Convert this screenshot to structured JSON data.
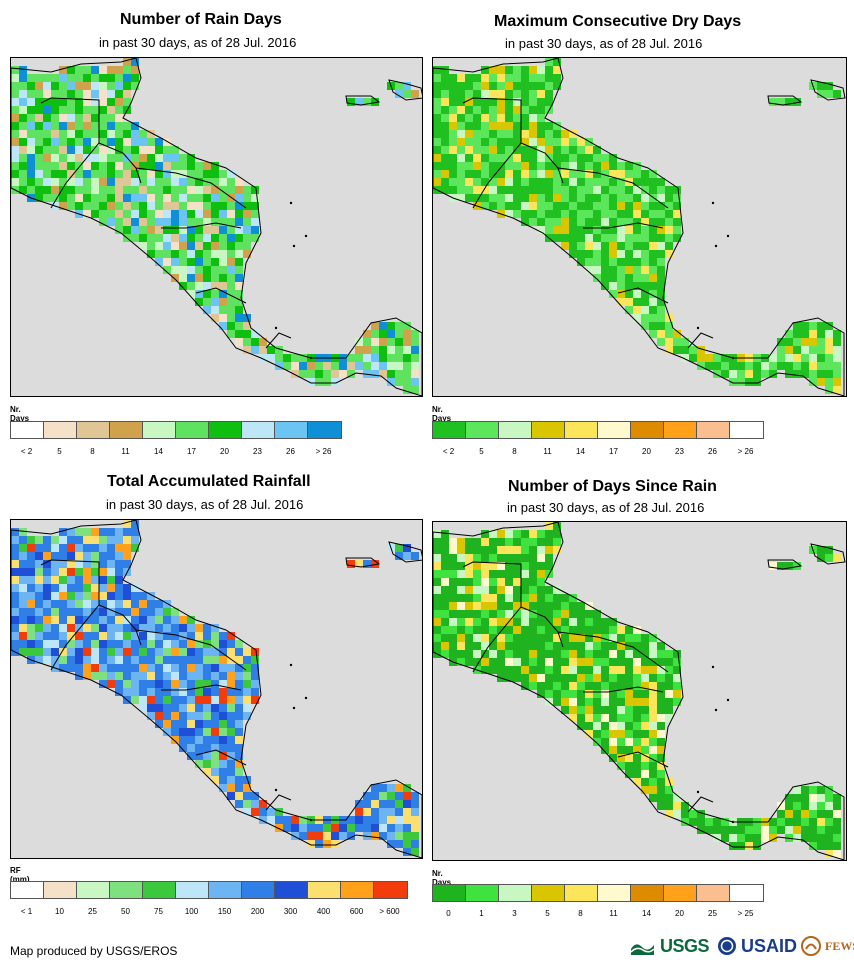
{
  "panels": [
    {
      "id": "rain-days",
      "title": "Number of Rain Days",
      "subtitle": "in past 30 days, as of 28 Jul. 2016",
      "units": "Nr. Days",
      "legend_colors": [
        "#ffffff",
        "#f5e1c8",
        "#e0c595",
        "#cfa24b",
        "#c8f7c4",
        "#5fe25f",
        "#0fbf0f",
        "#bde7f7",
        "#6cc4f2",
        "#0e8fd6"
      ],
      "tick_labels": [
        "< 2",
        "5",
        "8",
        "11",
        "14",
        "17",
        "20",
        "23",
        "26",
        "> 26"
      ],
      "map_colors": [
        "#5fe25f",
        "#0fbf0f",
        "#c8f7c4",
        "#bde7f7",
        "#6cc4f2",
        "#e0c595",
        "#cfa24b",
        "#f5e1c8",
        "#0e8fd6"
      ]
    },
    {
      "id": "max-dry-days",
      "title": "Maximum Consecutive Dry Days",
      "subtitle": "in past 30 days, as of 28 Jul. 2016",
      "units": "Nr. Days",
      "legend_colors": [
        "#1fc01f",
        "#5be65b",
        "#c8f7c4",
        "#d9c600",
        "#fbe55a",
        "#fffacd",
        "#dd8b00",
        "#ffa11a",
        "#fbbe8f",
        "#ffffff"
      ],
      "tick_labels": [
        "< 2",
        "5",
        "8",
        "11",
        "14",
        "17",
        "20",
        "23",
        "26",
        "> 26"
      ],
      "map_colors": [
        "#1fc01f",
        "#5be65b",
        "#1fc01f",
        "#5be65b",
        "#c8f7c4",
        "#d9c600",
        "#fbe55a"
      ]
    },
    {
      "id": "total-rainfall",
      "title": "Total Accumulated Rainfall",
      "subtitle": "in past 30 days, as of 28 Jul. 2016",
      "units": "RF (mm)",
      "legend_colors": [
        "#ffffff",
        "#f5e1c8",
        "#c8f7c4",
        "#7ee07e",
        "#3cc83c",
        "#bde7f7",
        "#6cb5f2",
        "#2f7fe6",
        "#1f4fd6",
        "#fbe070",
        "#ffa11a",
        "#f23c0c"
      ],
      "tick_labels": [
        "< 1",
        "10",
        "25",
        "50",
        "75",
        "100",
        "150",
        "200",
        "300",
        "400",
        "600",
        "> 600"
      ],
      "map_colors": [
        "#2f7fe6",
        "#6cb5f2",
        "#1f4fd6",
        "#bde7f7",
        "#ffa11a",
        "#f23c0c",
        "#fbe070",
        "#7ee07e",
        "#3cc83c"
      ]
    },
    {
      "id": "days-since-rain",
      "title": "Number of Days Since Rain",
      "subtitle": "in past 30 days, as of 28 Jul. 2016",
      "units": "Nr. Days",
      "legend_colors": [
        "#1fb31f",
        "#3fe23f",
        "#c8f7c4",
        "#d9c600",
        "#fbe55a",
        "#fffacd",
        "#dd8b00",
        "#ffa11a",
        "#fbbe8f",
        "#ffffff"
      ],
      "tick_labels": [
        "0",
        "1",
        "3",
        "5",
        "8",
        "11",
        "14",
        "20",
        "25",
        "> 25"
      ],
      "map_colors": [
        "#1fb31f",
        "#3fe23f",
        "#1fb31f",
        "#1fb31f",
        "#c8f7c4",
        "#d9c600",
        "#fbe55a",
        "#fffacd"
      ]
    }
  ],
  "map_background": "#dcdcdc",
  "credit": "Map produced by USGS/EROS",
  "logos": {
    "usgs": "USGS",
    "usaid": "USAID",
    "fews": "FEWS NET"
  }
}
